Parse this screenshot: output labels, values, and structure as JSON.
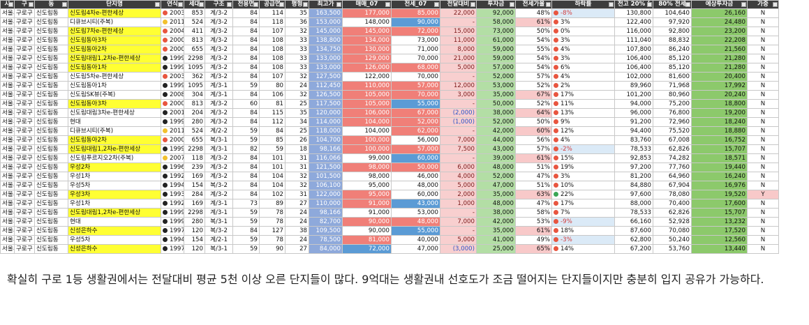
{
  "table": {
    "headers": [
      "시",
      "구",
      "동",
      "단지명",
      "연식",
      "세대",
      "구조",
      "전용면",
      "공급면",
      "평형",
      "최고가",
      "매매_07",
      "전세_07",
      "전달대비",
      "투자금",
      "전세가율",
      "하락률",
      "전고 20% (",
      "80% 전세",
      "예상투자금",
      "가중"
    ],
    "rows": [
      {
        "cells": [
          "서울시",
          "구로구",
          "신도림동",
          "신도림4차e-편한세상",
          "2003",
          "853",
          "계/3-2",
          "84",
          "114",
          "35",
          "163,500",
          "177,000",
          "85,000",
          "22,000",
          "92,000",
          "48%",
          "-8%",
          "130,800",
          "104,640",
          "26,160",
          "N"
        ],
        "style": {
          "highlight": true,
          "year_dot": "#e8553f",
          "sale_bg": "#f07f78",
          "jeonse_bg": "#f07f78",
          "drop_dot": "#e8553f"
        }
      },
      {
        "cells": [
          "서울시",
          "구로구",
          "신도림동",
          "디큐브시티(주복)",
          "2011",
          "524",
          "계/3-2",
          "84",
          "118",
          "36",
          "153,000",
          "148,000",
          "90,000",
          "-",
          "58,000",
          "61%",
          "3%",
          "122,400",
          "97,920",
          "24,480",
          "N"
        ],
        "style": {
          "year_dot": "#f2c12e",
          "jeonse_bg": "#5b9bd5",
          "rate_bg": "#f8c9c9",
          "drop_dot": "#e8553f"
        }
      },
      {
        "cells": [
          "서울시",
          "구로구",
          "신도림동",
          "신도림7차e-편한세상",
          "2004",
          "411",
          "계/3-2",
          "84",
          "107",
          "32",
          "145,000",
          "145,000",
          "72,000",
          "15,000",
          "73,000",
          "50%",
          "0%",
          "116,000",
          "92,800",
          "23,200",
          "N"
        ],
        "style": {
          "highlight": true,
          "year_dot": "#e8553f",
          "sale_bg": "#f07f78",
          "jeonse_bg": "#f07f78",
          "drop_dot": "#e8553f"
        }
      },
      {
        "cells": [
          "서울시",
          "구로구",
          "신도림동",
          "신도림동아3차",
          "2000",
          "813",
          "계/3-2",
          "84",
          "108",
          "33",
          "138,800",
          "134,000",
          "73,000",
          "11,000",
          "61,000",
          "54%",
          "3%",
          "111,040",
          "88,832",
          "22,208",
          "N"
        ],
        "style": {
          "highlight": true,
          "year_dot": "#e8553f",
          "sale_bg": "#f07f78",
          "drop_dot": "#e8553f"
        }
      },
      {
        "cells": [
          "서울시",
          "구로구",
          "신도림동",
          "신도림동아2차",
          "2000",
          "655",
          "계/3-2",
          "84",
          "108",
          "33",
          "134,750",
          "130,000",
          "71,000",
          "8,000",
          "59,000",
          "55%",
          "4%",
          "107,800",
          "86,240",
          "21,560",
          "N"
        ],
        "style": {
          "highlight": true,
          "year_dot": "#e8553f",
          "sale_bg": "#f07f78",
          "drop_dot": "#e8553f"
        }
      },
      {
        "cells": [
          "서울시",
          "구로구",
          "신도림동",
          "신도림대림1,2차e-편한세상",
          "1999",
          "2298",
          "계/3-2",
          "84",
          "108",
          "33",
          "133,000",
          "129,000",
          "70,000",
          "21,000",
          "59,000",
          "54%",
          "3%",
          "106,400",
          "85,120",
          "21,280",
          "N"
        ],
        "style": {
          "highlight": true,
          "year_dot": "#222222",
          "sale_bg": "#f07f78",
          "drop_dot": "#e8553f"
        }
      },
      {
        "cells": [
          "서울시",
          "구로구",
          "신도림동",
          "신도림동아1차",
          "1999",
          "1095",
          "계/3-2",
          "84",
          "108",
          "33",
          "133,000",
          "126,000",
          "68,000",
          "5,000",
          "57,000",
          "54%",
          "6%",
          "106,400",
          "85,120",
          "21,280",
          "N"
        ],
        "style": {
          "highlight": true,
          "year_dot": "#222222",
          "sale_bg": "#f07f78",
          "jeonse_bg": "#f07f78",
          "drop_dot": "#e8553f"
        }
      },
      {
        "cells": [
          "서울시",
          "구로구",
          "신도림동",
          "신도림5차e-편한세상",
          "2003",
          "362",
          "계/3-2",
          "84",
          "107",
          "32",
          "127,500",
          "122,000",
          "70,000",
          "-",
          "52,000",
          "57%",
          "4%",
          "102,000",
          "81,600",
          "20,400",
          "N"
        ],
        "style": {
          "year_dot": "#e8553f",
          "drop_dot": "#e8553f"
        }
      },
      {
        "cells": [
          "서울시",
          "구로구",
          "신도림동",
          "신도림동아1차",
          "1999",
          "1095",
          "계/3-1",
          "59",
          "80",
          "24",
          "112,450",
          "110,000",
          "57,000",
          "12,000",
          "53,000",
          "52%",
          "2%",
          "89,960",
          "71,968",
          "17,992",
          "N"
        ],
        "style": {
          "year_dot": "#222222",
          "sale_bg": "#f07f78",
          "jeonse_bg": "#f07f78",
          "drop_dot": "#e8553f"
        }
      },
      {
        "cells": [
          "서울시",
          "구로구",
          "신도림동",
          "신도림SK뷰(주복)",
          "2008",
          "304",
          "계/3-1",
          "84",
          "106",
          "32",
          "126,500",
          "105,000",
          "70,000",
          "3,000",
          "35,000",
          "67%",
          "17%",
          "101,200",
          "80,960",
          "20,240",
          "N"
        ],
        "style": {
          "year_dot": "#222222",
          "sale_bg": "#f07f78",
          "jeonse_bg": "#f07f78",
          "rate_bg": "#f8c9c9",
          "drop_dot": "#e8553f"
        }
      },
      {
        "cells": [
          "서울시",
          "구로구",
          "신도림동",
          "신도림동아3차",
          "2000",
          "813",
          "계/3-2",
          "60",
          "81",
          "25",
          "117,500",
          "105,000",
          "55,000",
          "-",
          "50,000",
          "52%",
          "11%",
          "94,000",
          "75,200",
          "18,800",
          "N"
        ],
        "style": {
          "highlight": true,
          "year_dot": "#e8553f",
          "sale_bg": "#f07f78",
          "jeonse_bg": "#5b9bd5",
          "drop_dot": "#e8553f"
        }
      },
      {
        "cells": [
          "서울시",
          "구로구",
          "신도림동",
          "신도림대림3차e-편한세상",
          "2001",
          "204",
          "계/3-2",
          "84",
          "115",
          "35",
          "120,000",
          "106,000",
          "67,000",
          "(2,000)",
          "38,000",
          "64%",
          "13%",
          "96,000",
          "76,800",
          "19,200",
          "N"
        ],
        "style": {
          "year_dot": "#222222",
          "sale_bg": "#f07f78",
          "jeonse_bg": "#f07f78",
          "rate_bg": "#f8c9c9",
          "drop_dot": "#e8553f"
        }
      },
      {
        "cells": [
          "서울시",
          "구로구",
          "신도림동",
          "현대",
          "1999",
          "280",
          "계/3-2",
          "84",
          "112",
          "34",
          "114,000",
          "104,000",
          "52,000",
          "(1,000)",
          "52,000",
          "50%",
          "9%",
          "91,200",
          "72,960",
          "18,240",
          "N"
        ],
        "style": {
          "year_dot": "#222222",
          "sale_bg": "#f07f78",
          "jeonse_bg": "#f07f78",
          "drop_dot": "#e8553f"
        }
      },
      {
        "cells": [
          "서울시",
          "구로구",
          "신도림동",
          "디큐브시티(주복)",
          "2011",
          "524",
          "계/2-2",
          "59",
          "84",
          "25",
          "118,000",
          "104,000",
          "62,000",
          "-",
          "42,000",
          "60%",
          "12%",
          "94,400",
          "75,520",
          "18,880",
          "N"
        ],
        "style": {
          "year_dot": "#f2c12e",
          "jeonse_bg": "#f07f78",
          "rate_bg": "#f8c9c9",
          "drop_dot": "#e8553f"
        }
      },
      {
        "cells": [
          "서울시",
          "구로구",
          "신도림동",
          "신도림동아2차",
          "2000",
          "655",
          "복/3-1",
          "59",
          "85",
          "26",
          "104,700",
          "100,000",
          "56,000",
          "7,000",
          "44,000",
          "56%",
          "4%",
          "83,760",
          "67,008",
          "16,752",
          "N"
        ],
        "style": {
          "highlight": true,
          "year_dot": "#e8553f",
          "sale_bg": "#f07f78",
          "drop_dot": "#e8553f"
        }
      },
      {
        "cells": [
          "서울시",
          "구로구",
          "신도림동",
          "신도림대림1,2차e-편한세상",
          "1999",
          "2298",
          "계/3-1",
          "82",
          "59",
          "18",
          "98,166",
          "100,000",
          "57,000",
          "7,500",
          "43,000",
          "57%",
          "-2%",
          "78,533",
          "62,826",
          "15,707",
          "N"
        ],
        "style": {
          "highlight": true,
          "year_dot": "#222222",
          "sale_bg": "#f07f78",
          "jeonse_bg": "#f07f78",
          "drop_dot": "#e8553f"
        }
      },
      {
        "cells": [
          "서울시",
          "구로구",
          "신도림동",
          "신도림푸르지오2차(주복)",
          "2007",
          "118",
          "계/3-2",
          "84",
          "101",
          "31",
          "116,066",
          "99,000",
          "60,000",
          "-",
          "39,000",
          "61%",
          "15%",
          "92,853",
          "74,282",
          "18,571",
          "N"
        ],
        "style": {
          "year_dot": "#f2c12e",
          "jeonse_bg": "#5b9bd5",
          "rate_bg": "#f8c9c9",
          "drop_dot": "#e8553f"
        }
      },
      {
        "cells": [
          "서울시",
          "구로구",
          "신도림동",
          "우성2차",
          "1996",
          "239",
          "계/3-2",
          "84",
          "101",
          "31",
          "121,500",
          "98,000",
          "50,000",
          "6,000",
          "48,000",
          "51%",
          "19%",
          "97,200",
          "77,760",
          "19,440",
          "N"
        ],
        "style": {
          "highlight": true,
          "year_dot": "#222222",
          "sale_bg": "#f07f78",
          "jeonse_bg": "#f07f78",
          "drop_dot": "#e8553f"
        }
      },
      {
        "cells": [
          "서울시",
          "구로구",
          "신도림동",
          "우성1차",
          "1992",
          "169",
          "계/3-2",
          "84",
          "104",
          "32",
          "101,500",
          "98,000",
          "46,000",
          "4,000",
          "52,000",
          "47%",
          "3%",
          "81,200",
          "64,960",
          "16,240",
          "N"
        ],
        "style": {
          "year_dot": "#222222",
          "drop_dot": "#e8553f"
        }
      },
      {
        "cells": [
          "서울시",
          "구로구",
          "신도림동",
          "우성5차",
          "1994",
          "154",
          "복/3-2",
          "84",
          "104",
          "32",
          "106,100",
          "95,000",
          "48,000",
          "5,000",
          "47,000",
          "51%",
          "10%",
          "84,880",
          "67,904",
          "16,976",
          "N"
        ],
        "style": {
          "year_dot": "#222222",
          "drop_dot": "#e8553f"
        }
      },
      {
        "cells": [
          "서울시",
          "구로구",
          "신도림동",
          "우성3차",
          "1993",
          "284",
          "계/3-2",
          "84",
          "102",
          "31",
          "122,000",
          "95,000",
          "60,000",
          "2,000",
          "35,000",
          "63%",
          "22%",
          "97,600",
          "78,080",
          "19,520",
          "Y"
        ],
        "style": {
          "highlight": true,
          "year_dot": "#222222",
          "sale_bg": "#f07f78",
          "rate_bg": "#f8c9c9",
          "drop_dot": "#3aa655",
          "flag_bg": "#f8c9c9"
        }
      },
      {
        "cells": [
          "서울시",
          "구로구",
          "신도림동",
          "우성1차",
          "1992",
          "169",
          "계/3-1",
          "73",
          "89",
          "27",
          "110,000",
          "91,000",
          "43,000",
          "1,000",
          "48,000",
          "47%",
          "17%",
          "88,000",
          "70,400",
          "17,600",
          "N"
        ],
        "style": {
          "year_dot": "#222222",
          "sale_bg": "#f07f78",
          "jeonse_bg": "#5b9bd5",
          "drop_dot": "#e8553f"
        }
      },
      {
        "cells": [
          "서울시",
          "구로구",
          "신도림동",
          "신도림대림1,2차e-편한세상",
          "1999",
          "2298",
          "계/3-1",
          "59",
          "78",
          "24",
          "98,166",
          "91,000",
          "53,000",
          "-",
          "38,000",
          "58%",
          "7%",
          "78,533",
          "62,826",
          "15,707",
          "N"
        ],
        "style": {
          "highlight": true,
          "year_dot": "#222222",
          "drop_dot": "#e8553f"
        }
      },
      {
        "cells": [
          "서울시",
          "구로구",
          "신도림동",
          "현대",
          "1999",
          "280",
          "복/3-1",
          "59",
          "78",
          "24",
          "82,700",
          "90,000",
          "48,000",
          "7,000",
          "42,000",
          "53%",
          "-9%",
          "66,160",
          "52,928",
          "13,232",
          "N"
        ],
        "style": {
          "year_dot": "#222222",
          "sale_bg": "#f07f78",
          "jeonse_bg": "#f07f78",
          "drop_dot": "#e8553f"
        }
      },
      {
        "cells": [
          "서울시",
          "구로구",
          "신도림동",
          "신성은하수",
          "1997",
          "120",
          "복/3-2",
          "84",
          "127",
          "38",
          "109,500",
          "90,000",
          "55,000",
          "-",
          "35,000",
          "61%",
          "18%",
          "87,600",
          "70,080",
          "17,520",
          "N"
        ],
        "style": {
          "highlight": true,
          "year_dot": "#222222",
          "jeonse_bg": "#5b9bd5",
          "rate_bg": "#f8c9c9",
          "drop_dot": "#e8553f"
        }
      },
      {
        "cells": [
          "서울시",
          "구로구",
          "신도림동",
          "우성5차",
          "1994",
          "154",
          "계/2-1",
          "59",
          "78",
          "24",
          "78,500",
          "81,000",
          "40,000",
          "5,000",
          "41,000",
          "49%",
          "-3%",
          "62,800",
          "50,240",
          "12,560",
          "N"
        ],
        "style": {
          "year_dot": "#222222",
          "sale_bg": "#f07f78",
          "drop_dot": "#e8553f"
        }
      },
      {
        "cells": [
          "서울시",
          "구로구",
          "신도림동",
          "신성은하수",
          "1997",
          "120",
          "복/3-1",
          "59",
          "90",
          "27",
          "84,000",
          "72,000",
          "47,000",
          "(3,000)",
          "25,000",
          "65%",
          "14%",
          "67,200",
          "53,760",
          "13,440",
          "N"
        ],
        "style": {
          "highlight": true,
          "year_dot": "#222222",
          "sale_bg": "#5b9bd5",
          "rate_bg": "#f8c9c9",
          "drop_dot": "#e8553f"
        }
      }
    ]
  },
  "paragraph": "확실히 구로 1등 생활권에서는 전달대비 평균 5천 이상 오른 단지들이 많다. 9억대는 생활권내 선호도가 조금 떨어지는 단지들이지만 충분히 입지 공유가 가능하다."
}
